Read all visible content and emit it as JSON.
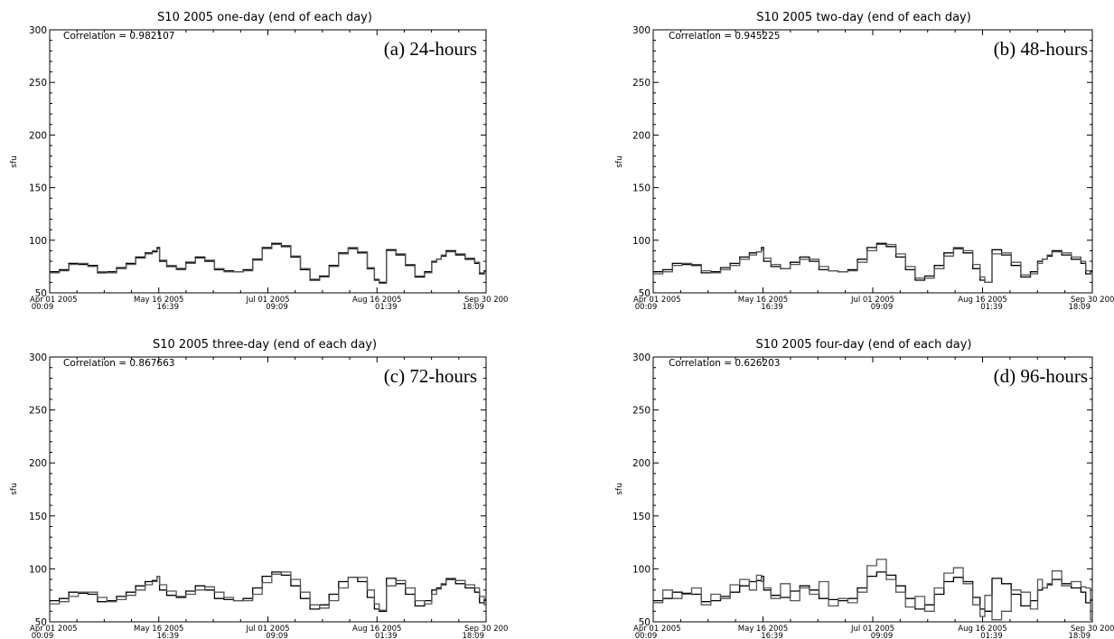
{
  "chart_data": [
    {
      "type": "line",
      "panel_label": "(a) 24-hours",
      "title": "S10 2005 one-day (end of each day)",
      "annotation": "Correlation = 0.982107",
      "ylabel": "sfu",
      "xlabel": "",
      "ylim": [
        50,
        300
      ],
      "yticks": [
        50,
        100,
        150,
        200,
        250,
        300
      ],
      "xlim": [
        "2005-04-01",
        "2005-09-30"
      ],
      "xtick_labels": [
        [
          "Apr 01 2005",
          "00:09"
        ],
        [
          "May 16 2005",
          "16:39"
        ],
        [
          "Jul 01 2005",
          "09:09"
        ],
        [
          "Aug 16 2005",
          "01:39"
        ],
        [
          "Sep 30 200",
          "18:09"
        ]
      ],
      "x": [
        "2005-04-01",
        "2005-04-05",
        "2005-04-09",
        "2005-04-13",
        "2005-04-17",
        "2005-04-21",
        "2005-04-25",
        "2005-04-29",
        "2005-05-03",
        "2005-05-07",
        "2005-05-11",
        "2005-05-14",
        "2005-05-16",
        "2005-05-17",
        "2005-05-20",
        "2005-05-24",
        "2005-05-28",
        "2005-06-01",
        "2005-06-05",
        "2005-06-09",
        "2005-06-13",
        "2005-06-17",
        "2005-06-21",
        "2005-06-25",
        "2005-06-29",
        "2005-07-03",
        "2005-07-07",
        "2005-07-11",
        "2005-07-15",
        "2005-07-19",
        "2005-07-23",
        "2005-07-27",
        "2005-07-31",
        "2005-08-04",
        "2005-08-08",
        "2005-08-12",
        "2005-08-15",
        "2005-08-17",
        "2005-08-20",
        "2005-08-24",
        "2005-08-28",
        "2005-09-01",
        "2005-09-05",
        "2005-09-08",
        "2005-09-10",
        "2005-09-12",
        "2005-09-14",
        "2005-09-18",
        "2005-09-22",
        "2005-09-26",
        "2005-09-28",
        "2005-09-30"
      ],
      "series": [
        {
          "color": "#000000",
          "values": [
            70,
            72,
            78,
            77,
            76,
            69,
            70,
            74,
            78,
            84,
            88,
            89,
            93,
            80,
            75,
            73,
            79,
            84,
            80,
            72,
            71,
            70,
            72,
            82,
            93,
            97,
            94,
            84,
            72,
            62,
            66,
            76,
            88,
            92,
            88,
            73,
            62,
            60,
            91,
            86,
            76,
            65,
            70,
            80,
            82,
            85,
            90,
            86,
            82,
            78,
            68,
            71
          ]
        },
        {
          "color": "#555555",
          "values": [
            69,
            71,
            77,
            78,
            75,
            70,
            69,
            73,
            77,
            83,
            87,
            90,
            92,
            81,
            76,
            72,
            78,
            83,
            81,
            73,
            70,
            70,
            71,
            81,
            92,
            96,
            95,
            85,
            73,
            63,
            65,
            75,
            87,
            93,
            89,
            74,
            63,
            59,
            90,
            87,
            77,
            66,
            69,
            79,
            82,
            86,
            89,
            87,
            83,
            79,
            69,
            70
          ]
        }
      ]
    },
    {
      "type": "line",
      "panel_label": "(b) 48-hours",
      "title": "S10 2005 two-day (end of each day)",
      "annotation": "Correlation = 0.945225",
      "ylabel": "sfu",
      "xlabel": "",
      "ylim": [
        50,
        300
      ],
      "yticks": [
        50,
        100,
        150,
        200,
        250,
        300
      ],
      "xlim": [
        "2005-04-01",
        "2005-09-30"
      ],
      "xtick_labels": [
        [
          "Apr 01 2005",
          "00:09"
        ],
        [
          "May 16 2005",
          "16:39"
        ],
        [
          "Jul 01 2005",
          "09:09"
        ],
        [
          "Aug 16 2005",
          "01:39"
        ],
        [
          "Sep 30 200",
          "18:09"
        ]
      ],
      "x": [
        "2005-04-01",
        "2005-04-05",
        "2005-04-09",
        "2005-04-13",
        "2005-04-17",
        "2005-04-21",
        "2005-04-25",
        "2005-04-29",
        "2005-05-03",
        "2005-05-07",
        "2005-05-11",
        "2005-05-14",
        "2005-05-16",
        "2005-05-17",
        "2005-05-20",
        "2005-05-24",
        "2005-05-28",
        "2005-06-01",
        "2005-06-05",
        "2005-06-09",
        "2005-06-13",
        "2005-06-17",
        "2005-06-21",
        "2005-06-25",
        "2005-06-29",
        "2005-07-03",
        "2005-07-07",
        "2005-07-11",
        "2005-07-15",
        "2005-07-19",
        "2005-07-23",
        "2005-07-27",
        "2005-07-31",
        "2005-08-04",
        "2005-08-08",
        "2005-08-12",
        "2005-08-15",
        "2005-08-17",
        "2005-08-20",
        "2005-08-24",
        "2005-08-28",
        "2005-09-01",
        "2005-09-05",
        "2005-09-08",
        "2005-09-10",
        "2005-09-12",
        "2005-09-14",
        "2005-09-18",
        "2005-09-22",
        "2005-09-26",
        "2005-09-28",
        "2005-09-30"
      ],
      "series": [
        {
          "color": "#000000",
          "values": [
            70,
            72,
            78,
            77,
            76,
            69,
            70,
            74,
            78,
            84,
            88,
            89,
            93,
            80,
            75,
            73,
            79,
            84,
            80,
            72,
            71,
            70,
            72,
            82,
            93,
            97,
            94,
            84,
            72,
            62,
            66,
            76,
            88,
            92,
            88,
            73,
            62,
            60,
            91,
            86,
            76,
            65,
            70,
            80,
            82,
            85,
            90,
            86,
            82,
            78,
            68,
            71
          ]
        },
        {
          "color": "#555555",
          "values": [
            68,
            70,
            76,
            78,
            77,
            71,
            69,
            72,
            76,
            82,
            86,
            89,
            91,
            83,
            77,
            73,
            77,
            82,
            82,
            75,
            71,
            70,
            71,
            79,
            90,
            96,
            96,
            87,
            75,
            64,
            64,
            73,
            85,
            93,
            90,
            77,
            65,
            60,
            87,
            88,
            79,
            67,
            68,
            78,
            82,
            86,
            89,
            88,
            84,
            80,
            71,
            68
          ]
        }
      ]
    },
    {
      "type": "line",
      "panel_label": "(c) 72-hours",
      "title": "S10 2005 three-day (end of each day)",
      "annotation": "Correlation = 0.867663",
      "ylabel": "sfu",
      "xlabel": "",
      "ylim": [
        50,
        300
      ],
      "yticks": [
        50,
        100,
        150,
        200,
        250,
        300
      ],
      "xlim": [
        "2005-04-01",
        "2005-09-30"
      ],
      "xtick_labels": [
        [
          "Apr 01 2005",
          "00:09"
        ],
        [
          "May 16 2005",
          "16:39"
        ],
        [
          "Jul 01 2005",
          "09:09"
        ],
        [
          "Aug 16 2005",
          "01:39"
        ],
        [
          "Sep 30 200",
          "18:09"
        ]
      ],
      "x": [
        "2005-04-01",
        "2005-04-05",
        "2005-04-09",
        "2005-04-13",
        "2005-04-17",
        "2005-04-21",
        "2005-04-25",
        "2005-04-29",
        "2005-05-03",
        "2005-05-07",
        "2005-05-11",
        "2005-05-14",
        "2005-05-16",
        "2005-05-17",
        "2005-05-20",
        "2005-05-24",
        "2005-05-28",
        "2005-06-01",
        "2005-06-05",
        "2005-06-09",
        "2005-06-13",
        "2005-06-17",
        "2005-06-21",
        "2005-06-25",
        "2005-06-29",
        "2005-07-03",
        "2005-07-07",
        "2005-07-11",
        "2005-07-15",
        "2005-07-19",
        "2005-07-23",
        "2005-07-27",
        "2005-07-31",
        "2005-08-04",
        "2005-08-08",
        "2005-08-12",
        "2005-08-15",
        "2005-08-17",
        "2005-08-20",
        "2005-08-24",
        "2005-08-28",
        "2005-09-01",
        "2005-09-05",
        "2005-09-08",
        "2005-09-10",
        "2005-09-12",
        "2005-09-14",
        "2005-09-18",
        "2005-09-22",
        "2005-09-26",
        "2005-09-28",
        "2005-09-30"
      ],
      "series": [
        {
          "color": "#000000",
          "values": [
            70,
            72,
            78,
            77,
            76,
            69,
            70,
            74,
            78,
            84,
            88,
            89,
            93,
            80,
            75,
            73,
            79,
            84,
            80,
            72,
            71,
            70,
            72,
            82,
            93,
            97,
            94,
            84,
            72,
            62,
            66,
            76,
            88,
            92,
            88,
            73,
            62,
            60,
            91,
            86,
            76,
            65,
            70,
            80,
            82,
            85,
            90,
            86,
            82,
            78,
            68,
            71
          ]
        },
        {
          "color": "#555555",
          "values": [
            67,
            69,
            74,
            78,
            78,
            73,
            69,
            71,
            75,
            80,
            85,
            88,
            93,
            85,
            79,
            74,
            76,
            80,
            83,
            78,
            73,
            70,
            70,
            76,
            87,
            95,
            97,
            90,
            78,
            66,
            63,
            70,
            82,
            92,
            92,
            80,
            67,
            61,
            84,
            89,
            82,
            70,
            67,
            76,
            81,
            86,
            91,
            89,
            85,
            82,
            74,
            66
          ]
        }
      ]
    },
    {
      "type": "line",
      "panel_label": "(d) 96-hours",
      "title": "S10 2005 four-day (end of each day)",
      "annotation": "Correlation = 0.626203",
      "ylabel": "sfu",
      "xlabel": "",
      "ylim": [
        50,
        300
      ],
      "yticks": [
        50,
        100,
        150,
        200,
        250,
        300
      ],
      "xlim": [
        "2005-04-01",
        "2005-09-30"
      ],
      "xtick_labels": [
        [
          "Apr 01 2005",
          "00:09"
        ],
        [
          "May 16 2005",
          "16:39"
        ],
        [
          "Jul 01 2005",
          "09:09"
        ],
        [
          "Aug 16 2005",
          "01:39"
        ],
        [
          "Sep 30 200",
          "18:09"
        ]
      ],
      "x": [
        "2005-04-01",
        "2005-04-05",
        "2005-04-09",
        "2005-04-13",
        "2005-04-17",
        "2005-04-21",
        "2005-04-25",
        "2005-04-29",
        "2005-05-03",
        "2005-05-07",
        "2005-05-11",
        "2005-05-14",
        "2005-05-16",
        "2005-05-17",
        "2005-05-20",
        "2005-05-24",
        "2005-05-28",
        "2005-06-01",
        "2005-06-05",
        "2005-06-09",
        "2005-06-13",
        "2005-06-17",
        "2005-06-21",
        "2005-06-25",
        "2005-06-29",
        "2005-07-03",
        "2005-07-07",
        "2005-07-11",
        "2005-07-15",
        "2005-07-19",
        "2005-07-23",
        "2005-07-27",
        "2005-07-31",
        "2005-08-04",
        "2005-08-08",
        "2005-08-12",
        "2005-08-15",
        "2005-08-17",
        "2005-08-20",
        "2005-08-24",
        "2005-08-28",
        "2005-09-01",
        "2005-09-05",
        "2005-09-08",
        "2005-09-10",
        "2005-09-12",
        "2005-09-14",
        "2005-09-18",
        "2005-09-22",
        "2005-09-26",
        "2005-09-28",
        "2005-09-30"
      ],
      "series": [
        {
          "color": "#000000",
          "values": [
            70,
            72,
            78,
            77,
            76,
            69,
            70,
            74,
            78,
            84,
            88,
            89,
            93,
            80,
            75,
            73,
            79,
            84,
            80,
            72,
            71,
            70,
            72,
            82,
            93,
            97,
            94,
            84,
            72,
            62,
            66,
            76,
            88,
            92,
            88,
            73,
            62,
            60,
            91,
            86,
            76,
            65,
            70,
            80,
            82,
            85,
            90,
            86,
            82,
            78,
            68,
            71
          ]
        },
        {
          "color": "#555555",
          "values": [
            68,
            80,
            72,
            76,
            82,
            66,
            76,
            72,
            85,
            90,
            80,
            94,
            88,
            82,
            72,
            86,
            70,
            82,
            76,
            88,
            65,
            72,
            68,
            78,
            103,
            109,
            90,
            78,
            64,
            74,
            60,
            82,
            96,
            101,
            86,
            66,
            55,
            75,
            52,
            60,
            80,
            78,
            62,
            90,
            82,
            86,
            98,
            84,
            88,
            83,
            82,
            52
          ]
        }
      ]
    }
  ]
}
